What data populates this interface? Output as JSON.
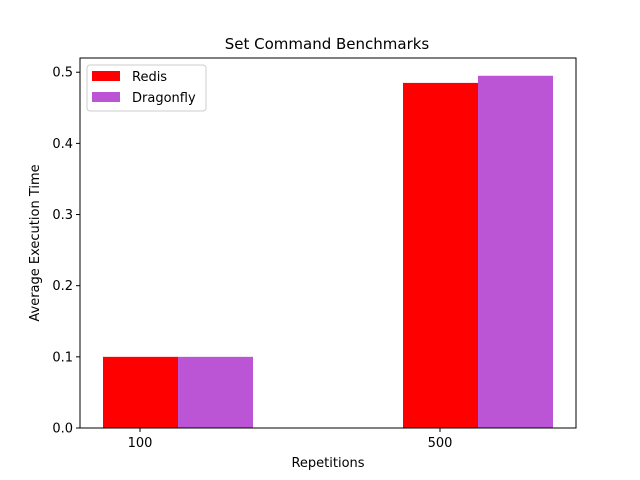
{
  "chart_data": {
    "type": "bar",
    "title": "Set Command Benchmarks",
    "xlabel": "Repetitions",
    "ylabel": "Average Execution Time",
    "categories": [
      "100",
      "500"
    ],
    "series": [
      {
        "name": "Redis",
        "values": [
          0.1,
          0.485
        ],
        "color": "#ff0000"
      },
      {
        "name": "Dragonfly",
        "values": [
          0.1,
          0.495
        ],
        "color": "#bb55d6"
      }
    ],
    "ylim": [
      0,
      0.52
    ],
    "yticks": [
      0.0,
      0.1,
      0.2,
      0.3,
      0.4,
      0.5
    ],
    "ytick_labels": [
      "0.0",
      "0.1",
      "0.2",
      "0.3",
      "0.4",
      "0.5"
    ],
    "grid": false,
    "legend": "upper-left"
  }
}
